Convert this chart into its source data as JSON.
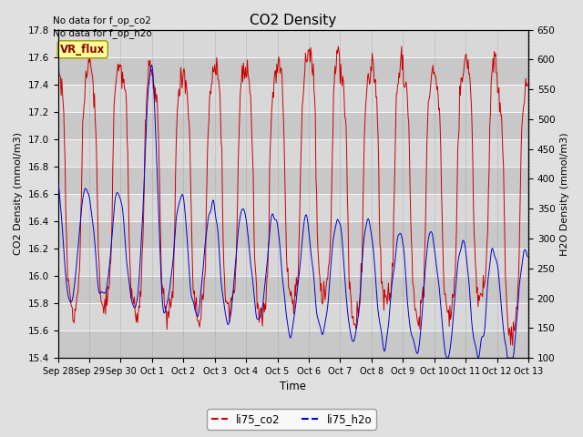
{
  "title": "CO2 Density",
  "xlabel": "Time",
  "ylabel_left": "CO2 Density (mmol/m3)",
  "ylabel_right": "H2O Density (mmol/m3)",
  "ylim_left": [
    15.4,
    17.8
  ],
  "ylim_right": [
    100,
    650
  ],
  "xtick_labels": [
    "Sep 28",
    "Sep 29",
    "Sep 30",
    "Oct 1",
    "Oct 2",
    "Oct 3",
    "Oct 4",
    "Oct 5",
    "Oct 6",
    "Oct 7",
    "Oct 8",
    "Oct 9",
    "Oct 10",
    "Oct 11",
    "Oct 12",
    "Oct 13"
  ],
  "annotation1": "No data for f_op_co2",
  "annotation2": "No data for f_op_h2o",
  "vr_flux_label": "VR_flux",
  "legend_labels": [
    "li75_co2",
    "li75_h2o"
  ],
  "co2_color": "#cc0000",
  "h2o_color": "#0000cc",
  "fig_facecolor": "#e0e0e0",
  "plot_bg_light": "#d8d8d8",
  "plot_bg_dark": "#c8c8c8",
  "vr_flux_bg": "#ffff99",
  "vr_flux_text": "#8b0000",
  "yticks_left": [
    15.4,
    15.6,
    15.8,
    16.0,
    16.2,
    16.4,
    16.6,
    16.8,
    17.0,
    17.2,
    17.4,
    17.6,
    17.8
  ],
  "yticks_right": [
    100,
    150,
    200,
    250,
    300,
    350,
    400,
    450,
    500,
    550,
    600,
    650
  ],
  "grid_color": "#ffffff",
  "figsize": [
    6.4,
    4.8
  ],
  "dpi": 100
}
